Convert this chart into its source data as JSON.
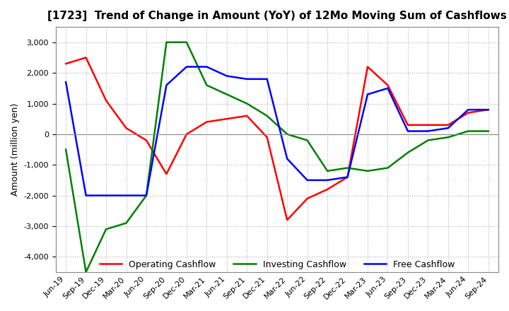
{
  "title": "[1723]  Trend of Change in Amount (YoY) of 12Mo Moving Sum of Cashflows",
  "ylabel": "Amount (million yen)",
  "x_labels": [
    "Jun-19",
    "Sep-19",
    "Dec-19",
    "Mar-20",
    "Jun-20",
    "Sep-20",
    "Dec-20",
    "Mar-21",
    "Jun-21",
    "Sep-21",
    "Dec-21",
    "Mar-22",
    "Jun-22",
    "Sep-22",
    "Dec-22",
    "Mar-23",
    "Jun-23",
    "Sep-23",
    "Dec-23",
    "Mar-24",
    "Jun-24",
    "Sep-24"
  ],
  "operating": [
    2300,
    2500,
    1100,
    200,
    -200,
    -1300,
    0,
    400,
    500,
    600,
    -100,
    -2800,
    -2100,
    -1800,
    -1400,
    2200,
    1600,
    300,
    300,
    300,
    700,
    800
  ],
  "investing": [
    -500,
    -4500,
    -3100,
    -2900,
    -2000,
    3000,
    3000,
    1600,
    1300,
    1000,
    600,
    0,
    -200,
    -1200,
    -1100,
    -1200,
    -1100,
    -600,
    -200,
    -100,
    100,
    100
  ],
  "free": [
    1700,
    -2000,
    -2000,
    -2000,
    -2000,
    1600,
    2200,
    2200,
    1900,
    1800,
    1800,
    -800,
    -1500,
    -1500,
    -1400,
    1300,
    1500,
    100,
    100,
    200,
    800,
    800
  ],
  "operating_color": "#ff0000",
  "investing_color": "#008000",
  "free_color": "#0000ff",
  "ylim": [
    -4500,
    3500
  ],
  "yticks": [
    -4000,
    -3000,
    -2000,
    -1000,
    0,
    1000,
    2000,
    3000
  ],
  "background_color": "#ffffff",
  "grid_color": "#b0b0b0",
  "title_fontsize": 11,
  "label_fontsize": 9,
  "tick_fontsize": 8,
  "linewidth": 1.8
}
